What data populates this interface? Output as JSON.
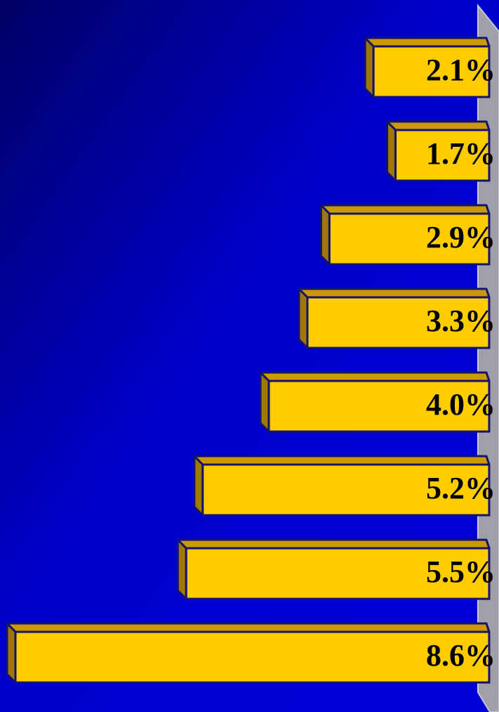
{
  "chart_data": {
    "type": "bar",
    "orientation": "horizontal",
    "values": [
      2.1,
      1.7,
      2.9,
      3.3,
      4.0,
      5.2,
      5.5,
      8.6
    ],
    "value_labels": [
      "2.1%",
      "1.7%",
      "2.9%",
      "3.3%",
      "4.0%",
      "5.2%",
      "5.5%",
      "8.6%"
    ],
    "color": "#ffcc00"
  }
}
